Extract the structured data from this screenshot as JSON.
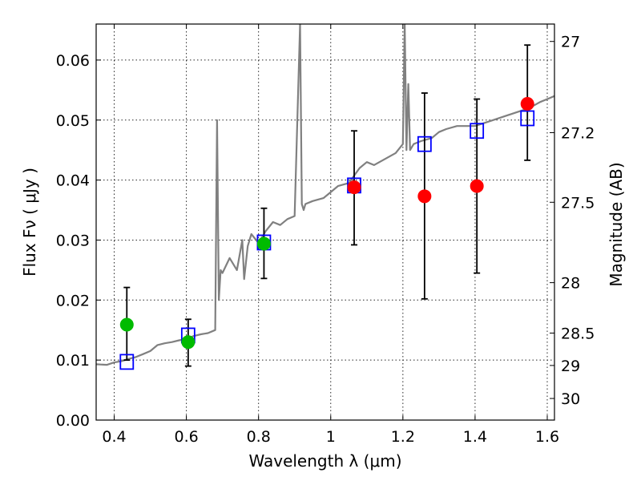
{
  "chart_data": {
    "type": "scatter",
    "xlabel": "Wavelength  λ (μm)",
    "ylabel": "Flux  Fν  ( μJy )",
    "ylabel_right": "Magnitude (AB)",
    "xlim": [
      0.35,
      1.62
    ],
    "ylim": [
      0.0,
      0.066
    ],
    "grid": true,
    "x_ticks": [
      0.4,
      0.6,
      0.8,
      1.0,
      1.2,
      1.4,
      1.6
    ],
    "x_tick_labels": [
      "0.4",
      "0.6",
      "0.8",
      "1",
      "1.2",
      "1.4",
      "1.6"
    ],
    "y_ticks": [
      0.0,
      0.01,
      0.02,
      0.03,
      0.04,
      0.05,
      0.06
    ],
    "y_tick_labels": [
      "0.00",
      "0.01",
      "0.02",
      "0.03",
      "0.04",
      "0.05",
      "0.06"
    ],
    "right_ticks": [
      {
        "flux": 0.0631,
        "label": "27"
      },
      {
        "flux": 0.0479,
        "label": "27.2"
      },
      {
        "flux": 0.0363,
        "label": "27.5"
      },
      {
        "flux": 0.0229,
        "label": "28"
      },
      {
        "flux": 0.0145,
        "label": "28.5"
      },
      {
        "flux": 0.0091,
        "label": "29"
      },
      {
        "flux": 0.0036,
        "label": "30"
      }
    ],
    "colors": {
      "spectrum": "#808080",
      "model_box": "#0000ff",
      "green": "#00bb00",
      "red": "#ff0000",
      "errorbar": "#000000"
    },
    "series": [
      {
        "kind": "spectrum",
        "x": [
          0.35,
          0.38,
          0.4,
          0.42,
          0.44,
          0.46,
          0.48,
          0.5,
          0.52,
          0.54,
          0.56,
          0.58,
          0.6,
          0.62,
          0.64,
          0.66,
          0.68,
          0.685,
          0.69,
          0.695,
          0.7,
          0.72,
          0.74,
          0.755,
          0.76,
          0.77,
          0.78,
          0.8,
          0.82,
          0.84,
          0.86,
          0.88,
          0.9,
          0.915,
          0.92,
          0.925,
          0.93,
          0.95,
          0.98,
          1.0,
          1.02,
          1.05,
          1.08,
          1.1,
          1.12,
          1.15,
          1.18,
          1.2,
          1.205,
          1.21,
          1.215,
          1.22,
          1.23,
          1.25,
          1.28,
          1.3,
          1.32,
          1.35,
          1.4,
          1.45,
          1.5,
          1.55,
          1.58,
          1.6,
          1.62
        ],
        "y": [
          0.0093,
          0.0092,
          0.0096,
          0.0098,
          0.0102,
          0.0105,
          0.011,
          0.0115,
          0.0125,
          0.0128,
          0.013,
          0.0133,
          0.0135,
          0.014,
          0.0143,
          0.0145,
          0.015,
          0.05,
          0.02,
          0.025,
          0.0245,
          0.027,
          0.025,
          0.03,
          0.0235,
          0.029,
          0.031,
          0.0295,
          0.0315,
          0.033,
          0.0325,
          0.0335,
          0.034,
          0.066,
          0.036,
          0.035,
          0.036,
          0.0365,
          0.037,
          0.038,
          0.039,
          0.0395,
          0.042,
          0.043,
          0.0425,
          0.0435,
          0.0445,
          0.046,
          0.066,
          0.045,
          0.056,
          0.045,
          0.046,
          0.0465,
          0.047,
          0.048,
          0.0485,
          0.049,
          0.049,
          0.05,
          0.051,
          0.052,
          0.053,
          0.0535,
          0.054
        ]
      },
      {
        "kind": "model_boxes",
        "x": [
          0.435,
          0.605,
          0.815,
          1.065,
          1.26,
          1.405,
          1.545
        ],
        "y": [
          0.0097,
          0.0141,
          0.0296,
          0.0391,
          0.046,
          0.0482,
          0.0503
        ]
      },
      {
        "kind": "observed",
        "x": [
          0.435,
          0.605,
          0.815,
          1.065,
          1.26,
          1.405,
          1.545
        ],
        "y": [
          0.0159,
          0.013,
          0.0294,
          0.0388,
          0.0373,
          0.039,
          0.0527
        ],
        "yerr_low": [
          0.01,
          0.009,
          0.0236,
          0.0292,
          0.0202,
          0.0245,
          0.0433
        ],
        "yerr_high": [
          0.0221,
          0.0168,
          0.0353,
          0.0482,
          0.0545,
          0.0535,
          0.0625
        ],
        "colors": [
          "green",
          "green",
          "green",
          "red",
          "red",
          "red",
          "red"
        ]
      }
    ]
  }
}
